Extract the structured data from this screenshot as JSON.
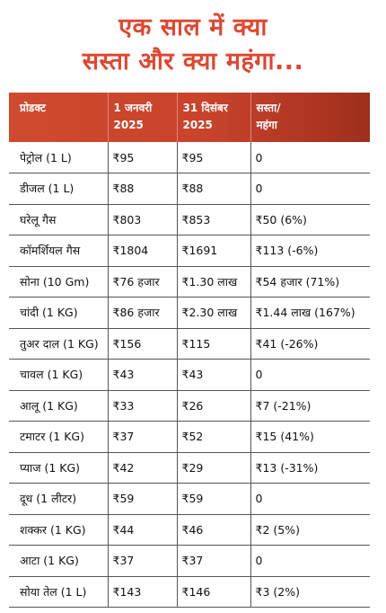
{
  "title": {
    "line1": "एक साल में क्या",
    "line2": "सस्ता और क्या महंगा..."
  },
  "table": {
    "headers": [
      [
        "प्रोडक्ट",
        ""
      ],
      [
        "1 जनवरी",
        "2025"
      ],
      [
        "31 दिसंबर",
        "2025"
      ],
      [
        "सस्ता/",
        "महंगा"
      ]
    ],
    "rows": [
      [
        "पेट्रोल (1 L)",
        "₹95",
        "₹95",
        "0"
      ],
      [
        "डीजल (1 L)",
        "₹88",
        "₹88",
        "0"
      ],
      [
        "घरेलू गैस",
        "₹803",
        "₹853",
        "₹50 (6%)"
      ],
      [
        "कॉमर्शियल गैस",
        "₹1804",
        "₹1691",
        "₹113 (-6%)"
      ],
      [
        "सोना (10 Gm)",
        "₹76 हजार",
        "₹1.30 लाख",
        "₹54 हजार (71%)"
      ],
      [
        "चांदी (1 KG)",
        "₹86 हजार",
        "₹2.30 लाख",
        "₹1.44 लाख (167%)"
      ],
      [
        "तुअर दाल (1 KG)",
        "₹156",
        "₹115",
        "₹41 (-26%)"
      ],
      [
        "चावल (1 KG)",
        "₹43",
        "₹43",
        "0"
      ],
      [
        "आलू (1 KG)",
        "₹33",
        "₹26",
        "₹7 (-21%)"
      ],
      [
        "टमाटर (1 KG)",
        "₹37",
        "₹52",
        "₹15 (41%)"
      ],
      [
        "प्याज (1 KG)",
        "₹42",
        "₹29",
        "₹13 (-31%)"
      ],
      [
        "दूध (1 लीटर)",
        "₹59",
        "₹59",
        "0"
      ],
      [
        "शक्कर (1 KG)",
        "₹44",
        "₹46",
        "₹2 (5%)"
      ],
      [
        "आटा (1 KG)",
        "₹37",
        "₹37",
        "0"
      ],
      [
        "सोया तेल (1 L)",
        "₹143",
        "₹146",
        "₹3 (2%)"
      ]
    ]
  },
  "colors": {
    "title": "#e0462f",
    "header_bg": "#c8432b",
    "header_text": "#ffffff",
    "border": "#555555"
  }
}
